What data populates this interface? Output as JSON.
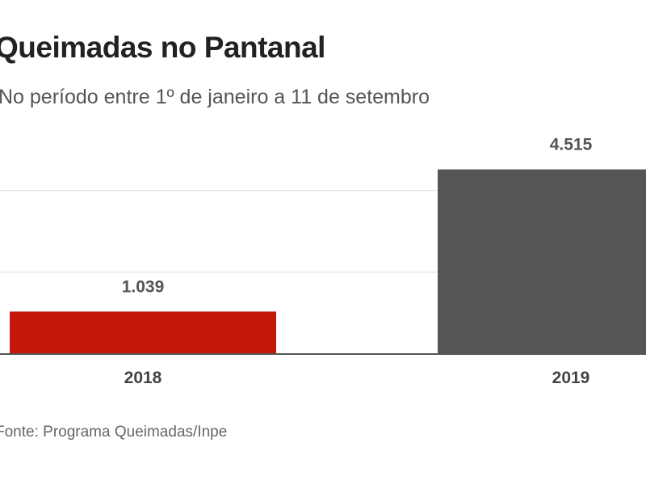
{
  "chart_data": {
    "type": "bar",
    "title": "Queimadas no Pantanal",
    "subtitle": "No período entre 1º de janeiro a 11 de setembro",
    "categories": [
      "2018",
      "2019"
    ],
    "values": [
      1039,
      4515
    ],
    "data_labels": [
      "1.039",
      "4.515"
    ],
    "colors": [
      "#c4170c",
      "#555555"
    ],
    "xlabel": "",
    "ylabel": "",
    "ylim": [
      0,
      4515
    ],
    "gridlines": [
      2000,
      4000
    ],
    "grid": true,
    "source": "Fonte: Programa Queimadas/Inpe"
  }
}
